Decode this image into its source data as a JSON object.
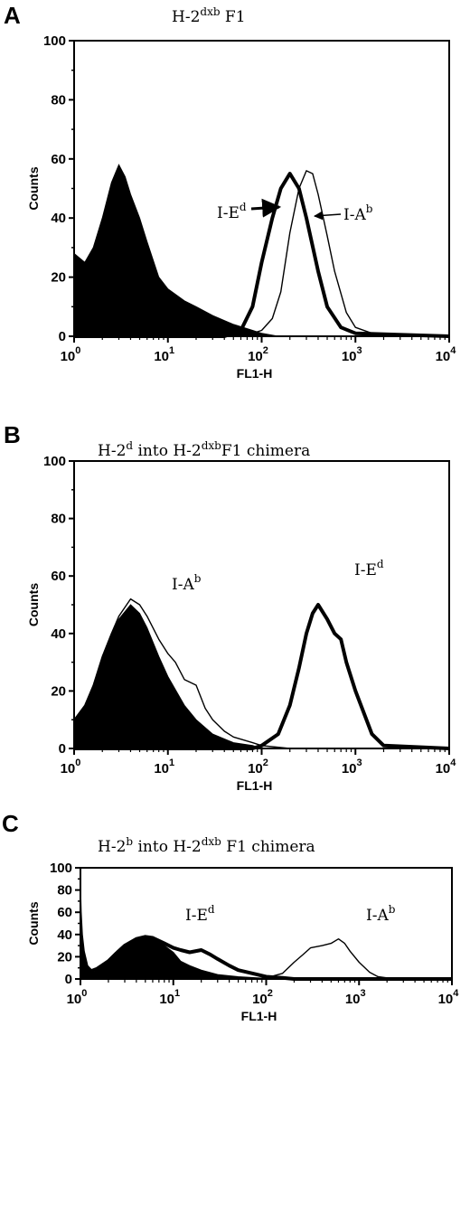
{
  "chart_data": [
    {
      "type": "area",
      "panel": "A",
      "title": {
        "base": "H-2",
        "sup": "dxb",
        "suffix": " F1"
      },
      "xlabel": "FL1-H",
      "ylabel": "Counts",
      "xscale": "log",
      "xlim": [
        1,
        10000
      ],
      "ylim": [
        0,
        100
      ],
      "xticks": [
        {
          "base": "10",
          "exp": "0",
          "value": 1
        },
        {
          "base": "10",
          "exp": "1",
          "value": 10
        },
        {
          "base": "10",
          "exp": "2",
          "value": 100
        },
        {
          "base": "10",
          "exp": "3",
          "value": 1000
        },
        {
          "base": "10",
          "exp": "4",
          "value": 10000
        }
      ],
      "yticks": [
        0,
        20,
        40,
        60,
        80,
        100
      ],
      "series": [
        {
          "style": "filled",
          "x": [
            1,
            1.3,
            1.6,
            2,
            2.5,
            3,
            3.5,
            4,
            5,
            6,
            8,
            10,
            15,
            20,
            30,
            50,
            80,
            100,
            150
          ],
          "y": [
            28,
            25,
            30,
            40,
            52,
            58,
            54,
            48,
            40,
            32,
            20,
            16,
            12,
            10,
            7,
            4,
            2,
            1,
            0
          ]
        },
        {
          "name": "I-E",
          "label_sup": "d",
          "style": "bold",
          "x": [
            1,
            40,
            60,
            80,
            100,
            130,
            160,
            200,
            250,
            300,
            400,
            500,
            700,
            1000,
            10000
          ],
          "y": [
            0,
            0,
            2,
            10,
            25,
            40,
            50,
            55,
            50,
            40,
            22,
            10,
            3,
            1,
            0
          ]
        },
        {
          "name": "I-A",
          "label_sup": "b",
          "style": "thin",
          "x": [
            1,
            60,
            80,
            100,
            130,
            160,
            200,
            250,
            300,
            350,
            400,
            500,
            600,
            800,
            1000,
            1500,
            10000
          ],
          "y": [
            0,
            0,
            1,
            2,
            6,
            15,
            35,
            50,
            56,
            55,
            48,
            34,
            22,
            8,
            3,
            1,
            0
          ]
        }
      ]
    },
    {
      "type": "area",
      "panel": "B",
      "title": {
        "base": "H-2",
        "sup": "d",
        "mid": "  into H-2",
        "sup2": "dxb",
        "suffix": "F1 chimera"
      },
      "xlabel": "FL1-H",
      "ylabel": "Counts",
      "xscale": "log",
      "xlim": [
        1,
        10000
      ],
      "ylim": [
        0,
        100
      ],
      "xticks": [
        {
          "base": "10",
          "exp": "0",
          "value": 1
        },
        {
          "base": "10",
          "exp": "1",
          "value": 10
        },
        {
          "base": "10",
          "exp": "2",
          "value": 100
        },
        {
          "base": "10",
          "exp": "3",
          "value": 1000
        },
        {
          "base": "10",
          "exp": "4",
          "value": 10000
        }
      ],
      "yticks": [
        0,
        20,
        40,
        60,
        80,
        100
      ],
      "series": [
        {
          "style": "filled",
          "x": [
            1,
            1.3,
            1.6,
            2,
            2.5,
            3,
            4,
            5,
            6,
            8,
            10,
            15,
            20,
            30,
            50,
            80,
            100
          ],
          "y": [
            10,
            15,
            22,
            32,
            40,
            45,
            50,
            47,
            42,
            32,
            25,
            15,
            10,
            5,
            2,
            1,
            0
          ]
        },
        {
          "name": "I-A",
          "label_sup": "b",
          "style": "thin",
          "x": [
            1,
            1.3,
            1.6,
            2,
            2.5,
            3,
            4,
            5,
            6,
            8,
            10,
            12,
            15,
            20,
            25,
            30,
            40,
            50,
            80,
            100,
            200,
            10000
          ],
          "y": [
            10,
            15,
            22,
            32,
            40,
            46,
            52,
            50,
            46,
            38,
            33,
            30,
            24,
            22,
            14,
            10,
            6,
            4,
            2,
            1,
            0,
            0
          ]
        },
        {
          "name": "I-E",
          "label_sup": "d",
          "style": "bold",
          "x": [
            1,
            80,
            100,
            150,
            200,
            250,
            300,
            350,
            400,
            500,
            600,
            700,
            800,
            1000,
            1500,
            2000,
            10000
          ],
          "y": [
            0,
            0,
            1,
            5,
            15,
            28,
            40,
            47,
            50,
            45,
            40,
            38,
            30,
            20,
            5,
            1,
            0
          ]
        }
      ]
    },
    {
      "type": "area",
      "panel": "C",
      "title": {
        "base": "H-2",
        "sup": "b",
        "mid": "  into H-2",
        "sup2": "dxb",
        "suffix": " F1 chimera"
      },
      "xlabel": "FL1-H",
      "ylabel": "Counts",
      "xscale": "log",
      "xlim": [
        1,
        10000
      ],
      "ylim": [
        0,
        100
      ],
      "xticks": [
        {
          "base": "10",
          "exp": "0",
          "value": 1
        },
        {
          "base": "10",
          "exp": "1",
          "value": 10
        },
        {
          "base": "10",
          "exp": "2",
          "value": 100
        },
        {
          "base": "10",
          "exp": "3",
          "value": 1000
        },
        {
          "base": "10",
          "exp": "4",
          "value": 10000
        }
      ],
      "yticks": [
        0,
        20,
        40,
        60,
        80,
        100
      ],
      "series": [
        {
          "style": "filled",
          "x": [
            1,
            1.02,
            1.05,
            1.1,
            1.2,
            1.4,
            1.7,
            2,
            2.5,
            3,
            4,
            5,
            6,
            8,
            10,
            12,
            15,
            20,
            30,
            50,
            80,
            100,
            150
          ],
          "y": [
            88,
            60,
            40,
            25,
            12,
            6,
            10,
            16,
            24,
            30,
            36,
            38,
            36,
            30,
            24,
            16,
            12,
            8,
            4,
            2,
            1,
            0.5,
            0
          ]
        },
        {
          "name": "I-E",
          "label_sup": "d",
          "style": "bold",
          "x": [
            1,
            1.2,
            1.5,
            2,
            2.5,
            3,
            4,
            5,
            6,
            8,
            10,
            12,
            15,
            20,
            25,
            30,
            40,
            50,
            80,
            100,
            150,
            200,
            10000
          ],
          "y": [
            5,
            6,
            9,
            16,
            24,
            30,
            36,
            38,
            37,
            32,
            28,
            26,
            24,
            26,
            22,
            18,
            12,
            8,
            4,
            2,
            1,
            0,
            0
          ]
        },
        {
          "name": "I-A",
          "label_sup": "b",
          "style": "thin",
          "x": [
            1,
            80,
            100,
            150,
            200,
            250,
            300,
            400,
            500,
            600,
            700,
            800,
            1000,
            1300,
            1600,
            2000,
            10000
          ],
          "y": [
            0,
            0,
            1,
            5,
            15,
            22,
            28,
            30,
            32,
            36,
            32,
            25,
            15,
            6,
            2,
            1,
            0
          ]
        }
      ]
    }
  ]
}
